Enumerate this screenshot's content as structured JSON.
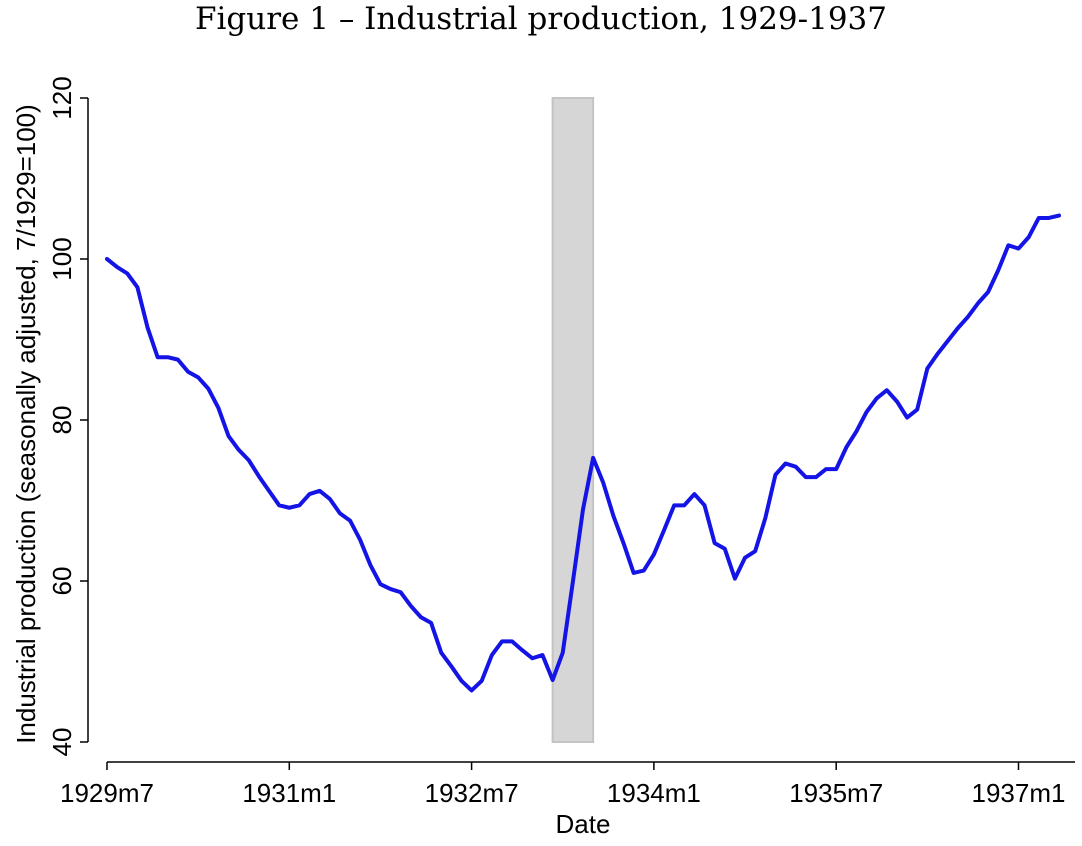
{
  "chart_data": {
    "type": "line",
    "title": "Figure 1 – Industrial production, 1929-1937",
    "xlabel": "Date",
    "ylabel": "Industrial production (seasonally adjusted, 7/1929=100)",
    "x_start": "1929m7",
    "x_end": "1937m5",
    "x_ticks": [
      {
        "label": "1929m7",
        "date": "1929m7"
      },
      {
        "label": "1931m1",
        "date": "1931m1"
      },
      {
        "label": "1932m7",
        "date": "1932m7"
      },
      {
        "label": "1934m1",
        "date": "1934m1"
      },
      {
        "label": "1935m7",
        "date": "1935m7"
      },
      {
        "label": "1937m1",
        "date": "1937m1"
      }
    ],
    "ylim": [
      40,
      120
    ],
    "y_ticks": [
      40,
      60,
      80,
      100,
      120
    ],
    "grid": false,
    "shaded_region": {
      "start": "1933m3",
      "end": "1933m7",
      "ymin": 40,
      "ymax": 120
    },
    "colors": {
      "line": "#1414e6",
      "shade_fill": "#d6d6d6",
      "shade_stroke": "#c4c4c4"
    },
    "series": [
      {
        "x": [
          "1929m7",
          "1929m8",
          "1929m9",
          "1929m10",
          "1929m11",
          "1929m12",
          "1930m1",
          "1930m2",
          "1930m3",
          "1930m4",
          "1930m5",
          "1930m6",
          "1930m7",
          "1930m8",
          "1930m9",
          "1930m10",
          "1930m11",
          "1930m12",
          "1931m1",
          "1931m2",
          "1931m3",
          "1931m4",
          "1931m5",
          "1931m6",
          "1931m7",
          "1931m8",
          "1931m9",
          "1931m10",
          "1931m11",
          "1931m12",
          "1932m1",
          "1932m2",
          "1932m3",
          "1932m4",
          "1932m5",
          "1932m6",
          "1932m7",
          "1932m8",
          "1932m9",
          "1932m10",
          "1932m11",
          "1932m12",
          "1933m1",
          "1933m2",
          "1933m3",
          "1933m4",
          "1933m5",
          "1933m6",
          "1933m7",
          "1933m8",
          "1933m9",
          "1933m10",
          "1933m11",
          "1933m12",
          "1934m1",
          "1934m2",
          "1934m3",
          "1934m4",
          "1934m5",
          "1934m6",
          "1934m7",
          "1934m8",
          "1934m9",
          "1934m10",
          "1934m11",
          "1934m12",
          "1935m1",
          "1935m2",
          "1935m3",
          "1935m4",
          "1935m5",
          "1935m6",
          "1935m7",
          "1935m8",
          "1935m9",
          "1935m10",
          "1935m11",
          "1935m12",
          "1936m1",
          "1936m2",
          "1936m3",
          "1936m4",
          "1936m5",
          "1936m6",
          "1936m7",
          "1936m8",
          "1936m9",
          "1936m10",
          "1936m11",
          "1936m12",
          "1937m1",
          "1937m2",
          "1937m3",
          "1937m4",
          "1937m5"
        ],
        "values": [
          100,
          99,
          98.2,
          96.5,
          91.5,
          87.8,
          87.8,
          87.5,
          86,
          85.3,
          83.9,
          81.5,
          78,
          76.3,
          75,
          73,
          71.2,
          69.4,
          69.1,
          69.4,
          70.8,
          71.2,
          70.2,
          68.4,
          67.5,
          65.1,
          62,
          59.6,
          59,
          58.6,
          56.9,
          55.5,
          54.8,
          51.1,
          49.4,
          47.6,
          46.4,
          47.6,
          50.8,
          52.5,
          52.5,
          51.4,
          50.4,
          50.8,
          47.7,
          51.1,
          59.9,
          68.9,
          75.3,
          72.2,
          68.1,
          64.7,
          61,
          61.3,
          63.3,
          66.3,
          69.4,
          69.4,
          70.8,
          69.4,
          64.7,
          64,
          60.3,
          62.9,
          63.7,
          67.8,
          73.2,
          74.6,
          74.2,
          72.9,
          72.9,
          73.9,
          73.9,
          76.6,
          78.6,
          81,
          82.7,
          83.7,
          82.3,
          80.3,
          81.3,
          86.4,
          88.2,
          89.8,
          91.4,
          92.8,
          94.5,
          95.9,
          98.6,
          101.7,
          101.3,
          102.7,
          105.1,
          105.1,
          105.4
        ]
      }
    ]
  }
}
